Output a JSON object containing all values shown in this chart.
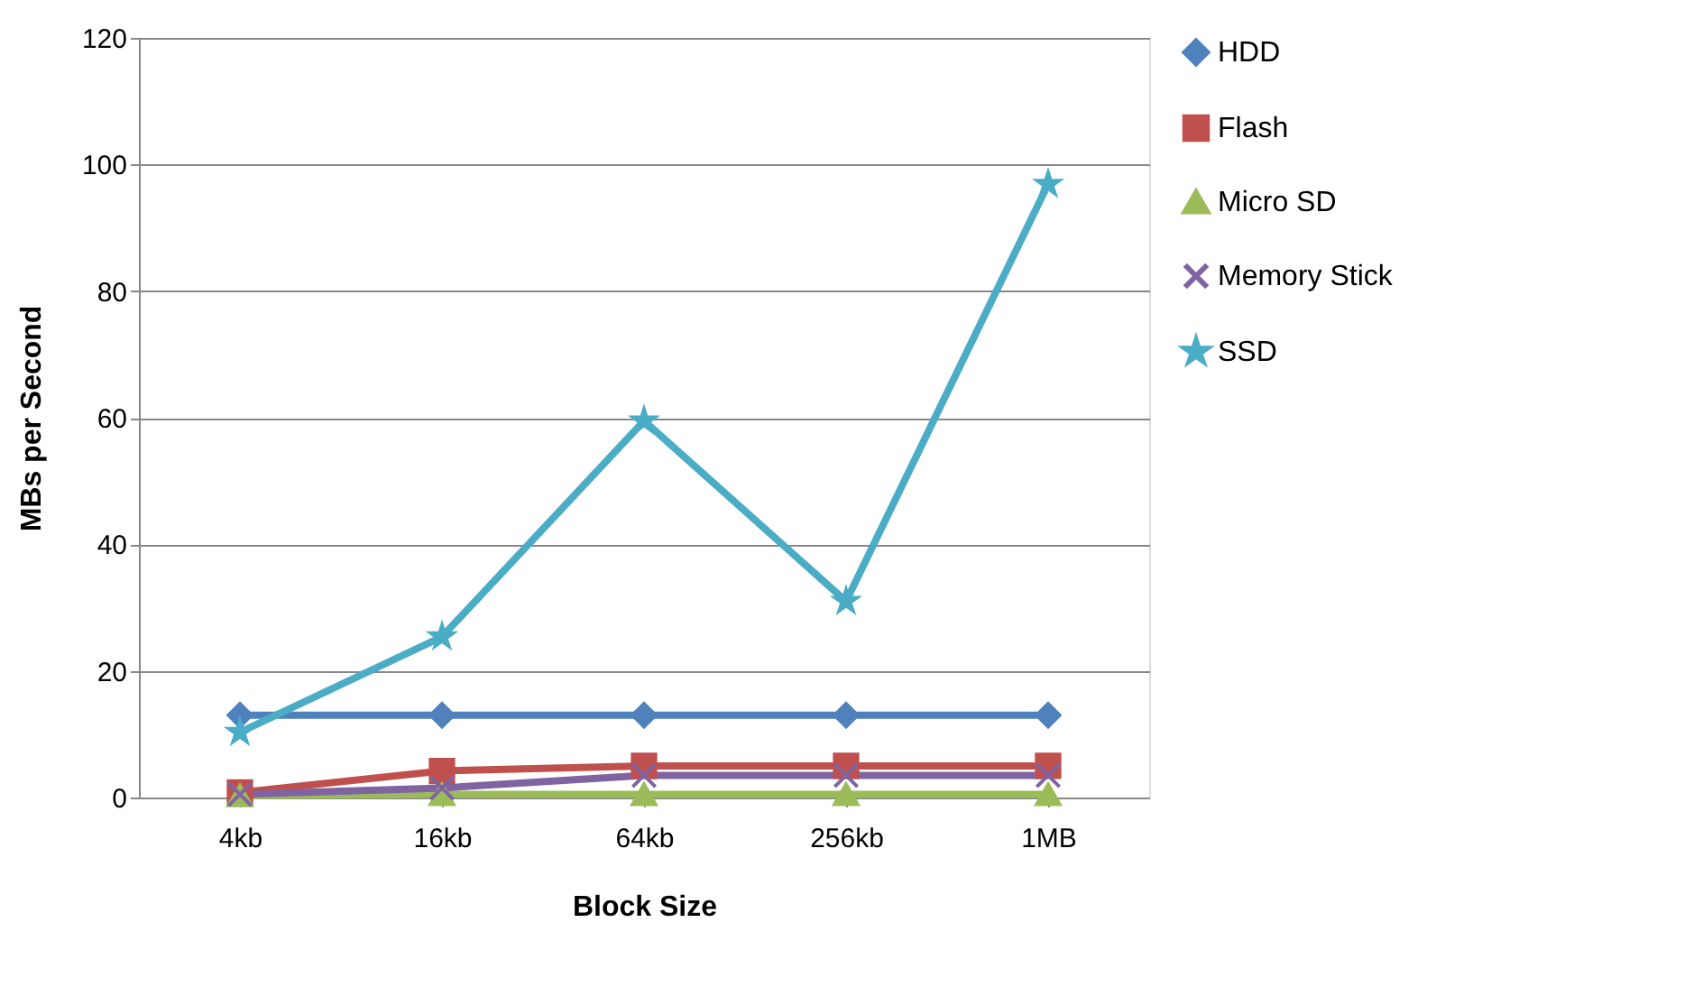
{
  "chart_data": {
    "type": "line",
    "xlabel": "Block Size",
    "ylabel": "MBs per Second",
    "categories": [
      "4kb",
      "16kb",
      "64kb",
      "256kb",
      "1MB"
    ],
    "ylim": [
      0,
      120
    ],
    "yticks": [
      0,
      20,
      40,
      60,
      80,
      100,
      120
    ],
    "grid": "y",
    "legend": "right",
    "line_style": "solid",
    "series": [
      {
        "name": "HDD",
        "color": "#4f81bd",
        "marker": "diamond",
        "values": [
          13,
          13,
          13,
          13,
          13
        ]
      },
      {
        "name": "Flash",
        "color": "#c0504d",
        "marker": "square",
        "values": [
          0.8,
          4.2,
          5,
          5,
          5
        ]
      },
      {
        "name": "Micro SD",
        "color": "#9bbb59",
        "marker": "triangle",
        "values": [
          0.3,
          0.5,
          0.5,
          0.5,
          0.5
        ]
      },
      {
        "name": "Memory Stick",
        "color": "#8064a2",
        "marker": "cross",
        "values": [
          0.5,
          1.5,
          3.5,
          3.5,
          3.5
        ]
      },
      {
        "name": "SSD",
        "color": "#4bacc6",
        "marker": "star",
        "values": [
          10.3,
          25.4,
          59.5,
          31,
          96.9
        ]
      }
    ]
  }
}
